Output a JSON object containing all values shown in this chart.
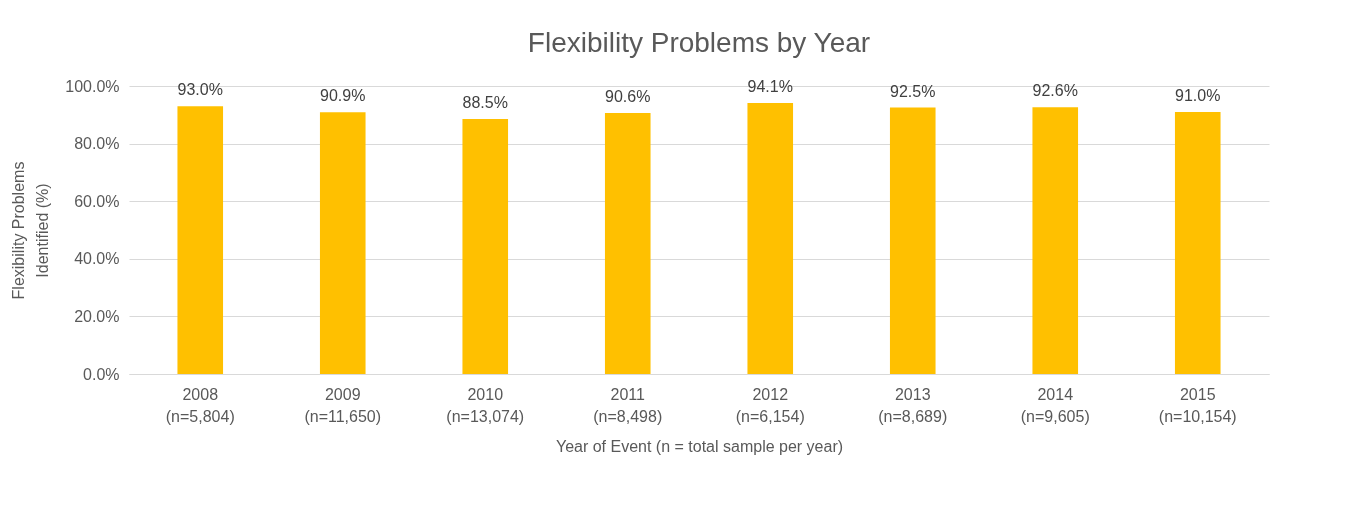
{
  "chart_data": {
    "type": "bar",
    "title": "Flexibility Problems by Year",
    "xlabel": "Year of Event (n = total sample per year)",
    "ylabel": "Flexibility Problems Identified (%)",
    "categories": [
      "2008\n(n=5,804)",
      "2009\n(n=11,650)",
      "2010\n(n=13,074)",
      "2011\n(n=8,498)",
      "2012\n(n=6,154)",
      "2013\n(n=8,689)",
      "2014\n(n=9,605)",
      "2015\n(n=10,154)"
    ],
    "values": [
      93.0,
      90.9,
      88.5,
      90.6,
      94.1,
      92.5,
      92.6,
      91.0
    ],
    "value_labels": [
      "93.0%",
      "90.9%",
      "88.5%",
      "90.6%",
      "94.1%",
      "92.5%",
      "92.6%",
      "91.0%"
    ],
    "color": "#ffc000",
    "ylim": [
      0,
      100
    ],
    "yticks": [
      {
        "value": 0,
        "label": "0.0%"
      },
      {
        "value": 20,
        "label": "20.0%"
      },
      {
        "value": 40,
        "label": "40.0%"
      },
      {
        "value": 60,
        "label": "60.0%"
      },
      {
        "value": 80,
        "label": "80.0%"
      },
      {
        "value": 100,
        "label": "100.0%"
      }
    ],
    "grid": "y"
  }
}
